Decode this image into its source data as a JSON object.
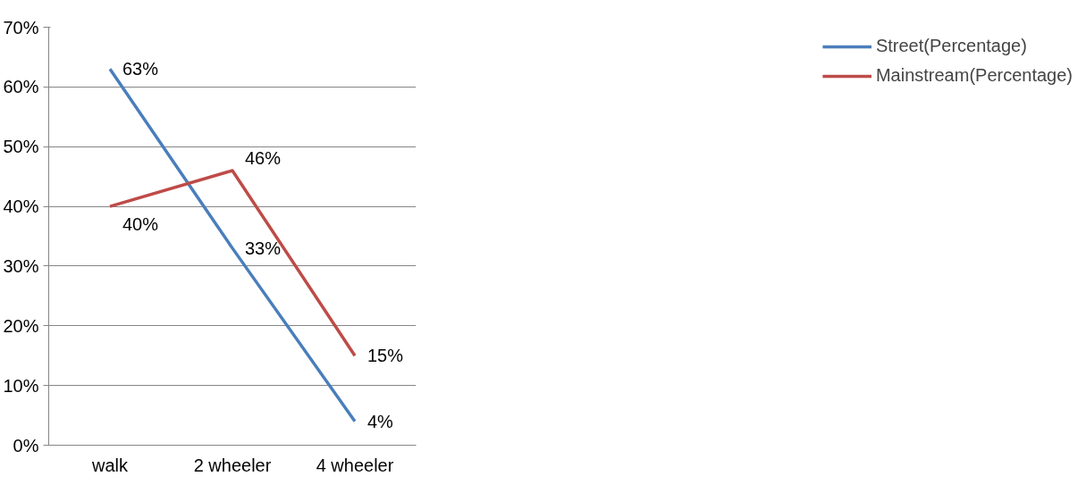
{
  "chart_data": {
    "type": "line",
    "categories": [
      "walk",
      "2 wheeler",
      "4 wheeler"
    ],
    "series": [
      {
        "name": "Street(Percentage)",
        "color": "#4a7ebb",
        "values": [
          63,
          33,
          4
        ],
        "value_labels": [
          "63%",
          "33%",
          "4%"
        ]
      },
      {
        "name": "Mainstream(Percentage)",
        "color": "#be4b48",
        "values": [
          40,
          46,
          15
        ],
        "value_labels": [
          "40%",
          "46%",
          "15%"
        ]
      }
    ],
    "ylim": [
      0,
      70
    ],
    "yticks": [
      {
        "value": 0,
        "label": "0%"
      },
      {
        "value": 10,
        "label": "10%"
      },
      {
        "value": 20,
        "label": "20%"
      },
      {
        "value": 30,
        "label": "30%"
      },
      {
        "value": 40,
        "label": "40%"
      },
      {
        "value": 50,
        "label": "50%"
      },
      {
        "value": 60,
        "label": "60%"
      },
      {
        "value": 70,
        "label": "70%"
      }
    ],
    "grid": "y",
    "legend": "right",
    "marker": "none",
    "line_style": "solid"
  }
}
